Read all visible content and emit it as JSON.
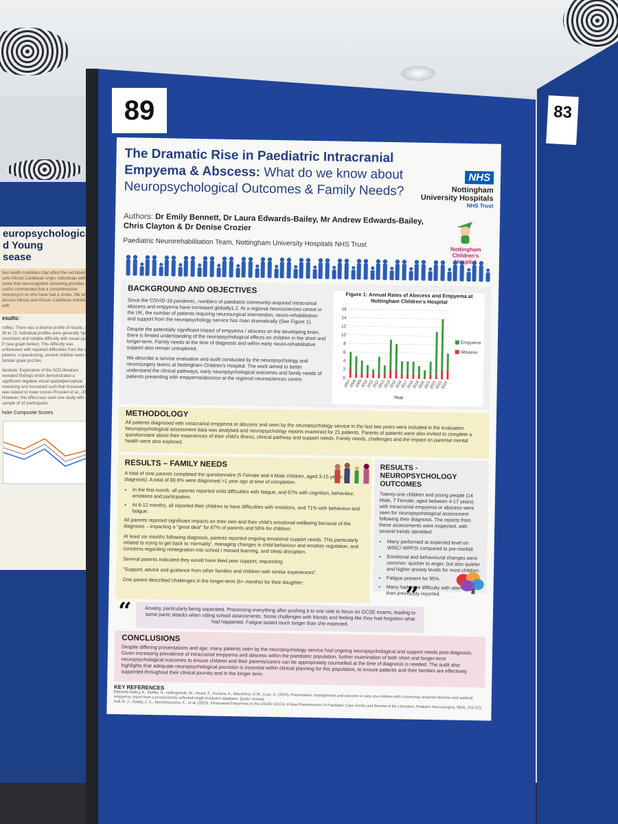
{
  "board_numbers": {
    "main": "89",
    "right": "83"
  },
  "left_poster": {
    "title": "europsychological\nd Young\nsease",
    "snippet_1": "ited health conditions that affect the red blood cells African Caribbean origin. Individuals with sickle that neurocognitive screening provides a useful commended that a comprehensive neuropsych en who have had a stroke. We aim to discuss African and African Caribbean individuals with",
    "heading": "esults:",
    "snippet_2": "rofiles: There was a diverse profile of results, with 45 to 72. Individual profiles were generally 'spiky' consistent and notable difficulty with visual spatial P (see graph below). This difficulty was unforeseen with reported difficulties from the child, parents. n questioning, several children were not familiar gsaw puzzles",
    "snippet_3": "iterature: Exploration of the SCD literature revealed findings which demonstrated a significant negative visual spatial/perceptual reasoning and increased such that increased risk was related to lower scores Prussien et al., 2020). However, this effect was seen one study with a sample of 10 participants.",
    "chart_caption": "hsler Composite Scores"
  },
  "poster": {
    "title_bold": "The Dramatic Rise in Paediatric Intracranial Empyema & Abscess:",
    "title_regular": "What do we know about Neuropsychological Outcomes & Family Needs?",
    "nhs_logo": "NHS",
    "nhs_org": "Nottingham University Hospitals",
    "nhs_trust": "NHS Trust",
    "nch_logo": "Nottingham Children's Hospital",
    "authors_prefix": "Authors: ",
    "authors_names": "Dr Emily Bennett, Dr Laura Edwards-Bailey, Mr Andrew Edwards-Bailey, Chris Clayton & Dr Denise Crozier",
    "team": "Paediatric Neurorehabilitation Team, Nottingham University Hospitals NHS Trust",
    "background": {
      "heading": "BACKGROUND AND OBJECTIVES",
      "p1": "Since the COVID-19 pandemic, numbers of paediatric community-acquired intracranial abscess and empyema have increased globally1,2. At a regional neurosciences centre in the UK, the number of patients requiring neurosurgical intervention, neuro-rehabilitation and support from the neuropsychology service has risen dramatically (See Figure 1).",
      "p2": "Despite the potentially significant impact of empyema / abscess on the developing brain, there is limited understanding of the neuropsychological effects on children in the short and longer-term. Family needs at the time of diagnosis and within early neuro-rehabilitative support also remain unexplored.",
      "p3": "We describe a service evaluation and audit conducted by the neuropsychology and neurosurgery teams at Nottingham Children's Hospital. The work aimed to better understand the clinical pathways, early neuropsychological outcomes and family needs of patients presenting with empyema/abscess at the regional neurosciences centre."
    },
    "methodology": {
      "heading": "METHODOLOGY",
      "text": "All patients diagnosed with intracranial empyema or abscess and seen by the neuropsychology service in the last two years were included in the evaluation. Neuropsychological assessment data was analysed and neuropsychology reports examined for 21 patients. Parents of patients were also invited to complete a questionnaire about their experiences of their child's illness, clinical pathway and support needs. Family needs, challenges and the impact on parental mental health were also explored."
    },
    "family": {
      "heading": "RESULTS – FAMILY NEEDS",
      "intro": "A total of nine parents completed the questionnaire (5 Female and 4 Male children, aged 3-15 years at diagnosis). A total of 88.9% were diagnosed >1 year ago at time of completion.",
      "bullets": [
        "In the first month, all parents reported child difficulties with fatigue, and 67% with cognition, behaviour, emotions and participation.",
        "At 6-12 months, all reported their children to have difficulties with emotions, and 71% with behaviour and fatigue."
      ],
      "p1": "All parents reported significant impacts on their own and their child's emotional wellbeing because of the diagnosis – impacting a \"great deal\" for 67% of parents and 56% for children.",
      "p2": "At least six months following diagnosis, parents reported ongoing emotional support needs. This particularly related to trying to get back to 'normality', managing changes in child behaviour and emotion regulation, and concerns regarding reintegration into school / missed learning, and sleep disruption.",
      "p3": "Several parents indicated they would have liked peer support, requesting:",
      "p4": "\"Support, advice and guidance from other families and children with similar experiences\".",
      "p5": "One parent described challenges in the longer-term (6+ months) for their daughter:"
    },
    "neuro": {
      "heading": "RESULTS - NEUROPSYCHOLOGY OUTCOMES",
      "intro": "Twenty-one children and young people (14 Male, 7 Female; aged between 4-17 years) with intracranial empyema or abscess were seen for neuropsychological assessment following their diagnosis. The reports from these assessments were inspected, with several trends identified:",
      "bullets": [
        "Many performed at expected level on WISC/ WPPSI compared to pre-morbid.",
        "Emotional and behavioural changes were common: quicker to anger, but also quieter and higher anxiety levels for most children.",
        "Fatigue present for 95%.",
        "Many had more difficulty with attention than previously reported."
      ]
    },
    "quote": {
      "open": "“",
      "close": "”",
      "text": "Anxiety, particularly being separated. Processing everything after pushing it to one side to focus on GCSE exams, leading to some panic attacks when sitting school assessments. Some challenges with friends and feeling like they had forgotten what had happened. Fatigue lasted much longer than she expected."
    },
    "conclusions": {
      "heading": "CONCLUSIONS",
      "text": "Despite differing presentations and age, many patients seen by the neuropsychology service had ongoing neuropsychological and support needs post-diagnosis. Given increasing prevalence of intracranial empyema and abscess within the paediatric population, further examination of both short and longer-term neuropsychological outcomes to ensure children and their parents/carers can be appropriately counselled at the time of diagnosis is needed. The audit also highlights that adequate neuropsychological provision is essential within clinical planning for this population, to ensure patients and their families are effectively supported throughout their clinical journey and in the longer term."
    },
    "references": {
      "heading": "KEY REFERENCES",
      "r1": "Edwards-Bailey, A., Rybka, N., Hollingworth, M., Heard, F., Kumara, A., MacArthur, D.M., Cruz, S. (2024). Presentation, management and outcome in sixty-one children with community-acquired abscess and epidural empyema: report from a prospectively collected single-institution database. [under review].",
      "r2": "Hall, B. J., Duddy, J. C., Apostolopoulou, K., et al. (2023). Intracranial Empyemas in the COVID-19 Era: A New Phenomenon? A Paediatric Case Series and Review of the Literature. Pediatric Neurosurgery, 58(4), 215-222."
    }
  },
  "chart_data": {
    "type": "bar",
    "title": "Figure 1: Annual Rates of Abscess and Empyema at Nottingham Children's Hospital",
    "xlabel": "Year",
    "ylabel": "",
    "ylim": [
      0,
      16
    ],
    "yticks": [
      0,
      2,
      4,
      6,
      8,
      10,
      12,
      14,
      16
    ],
    "categories": [
      "2007",
      "2008",
      "2009",
      "2010",
      "2011",
      "2012",
      "2013",
      "2014",
      "2015",
      "2016",
      "2017",
      "2018",
      "2019",
      "2020",
      "2021",
      "2022",
      "2023",
      "2024"
    ],
    "stacked": true,
    "legend": "right",
    "series": [
      {
        "name": "Abscess",
        "color": "#e0333a",
        "values": [
          2,
          1,
          1,
          1,
          1,
          1,
          1,
          2,
          2,
          1,
          1,
          1,
          1,
          0,
          1,
          1,
          2,
          2
        ]
      },
      {
        "name": "Empyema",
        "color": "#3a9a3e",
        "values": [
          4,
          4,
          3,
          2,
          1,
          4,
          2,
          7,
          6,
          3,
          3,
          3,
          2,
          2,
          3,
          10,
          12,
          4
        ]
      }
    ]
  }
}
